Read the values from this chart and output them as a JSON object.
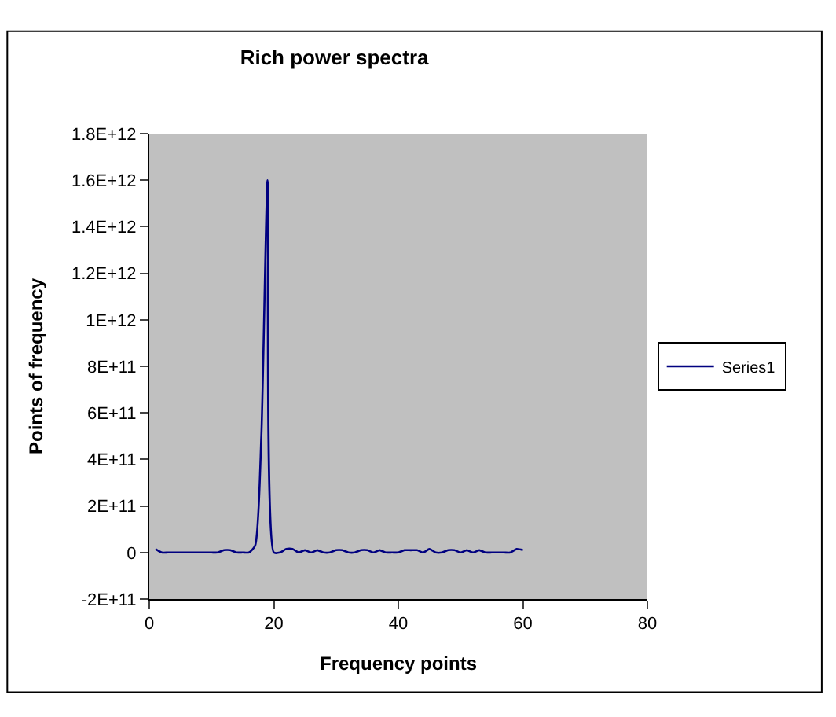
{
  "chart_data": {
    "type": "line",
    "title": "Rich power spectra",
    "xlabel": "Frequency points",
    "ylabel": "Points of frequency",
    "x": [
      1,
      2,
      3,
      4,
      5,
      6,
      7,
      8,
      9,
      10,
      11,
      12,
      13,
      14,
      15,
      16,
      17,
      18,
      19,
      20,
      21,
      22,
      23,
      24,
      25,
      26,
      27,
      28,
      29,
      30,
      31,
      32,
      33,
      34,
      35,
      36,
      37,
      38,
      39,
      40,
      41,
      42,
      43,
      44,
      45,
      46,
      47,
      48,
      49,
      50,
      51,
      52,
      53,
      54,
      55,
      56,
      57,
      58,
      59,
      60
    ],
    "series": [
      {
        "name": "Series1",
        "color": "#000080",
        "values": [
          15000000000.0,
          0,
          0,
          0,
          0,
          0,
          0,
          0,
          0,
          0,
          0,
          10000000000.0,
          10000000000.0,
          0,
          0,
          0,
          30000000000.0,
          500000000000.0,
          1600000000000.0,
          0,
          0,
          15000000000.0,
          15000000000.0,
          0,
          10000000000.0,
          0,
          10000000000.0,
          0,
          0,
          10000000000.0,
          10000000000.0,
          0,
          0,
          10000000000.0,
          10000000000.0,
          0,
          10000000000.0,
          0,
          0,
          0,
          10000000000.0,
          10000000000.0,
          10000000000.0,
          0,
          15000000000.0,
          0,
          0,
          10000000000.0,
          10000000000.0,
          0,
          10000000000.0,
          0,
          10000000000.0,
          0,
          0,
          0,
          0,
          0,
          15000000000.0,
          10000000000.0
        ]
      }
    ],
    "xlim": [
      0,
      80
    ],
    "xticks": [
      0,
      20,
      40,
      60,
      80
    ],
    "ylim": [
      -200000000000.0,
      1800000000000.0
    ],
    "yticks": [
      {
        "value": -200000000000.0,
        "label": "-2E+11"
      },
      {
        "value": 0,
        "label": "0"
      },
      {
        "value": 200000000000.0,
        "label": "2E+11"
      },
      {
        "value": 400000000000.0,
        "label": "4E+11"
      },
      {
        "value": 600000000000.0,
        "label": "6E+11"
      },
      {
        "value": 800000000000.0,
        "label": "8E+11"
      },
      {
        "value": 1000000000000.0,
        "label": "1E+12"
      },
      {
        "value": 1200000000000.0,
        "label": "1.2E+12"
      },
      {
        "value": 1400000000000.0,
        "label": "1.4E+12"
      },
      {
        "value": 1600000000000.0,
        "label": "1.6E+12"
      },
      {
        "value": 1800000000000.0,
        "label": "1.8E+12"
      }
    ],
    "grid": false,
    "legend": "right",
    "marker": "none",
    "line_style": "solid"
  }
}
